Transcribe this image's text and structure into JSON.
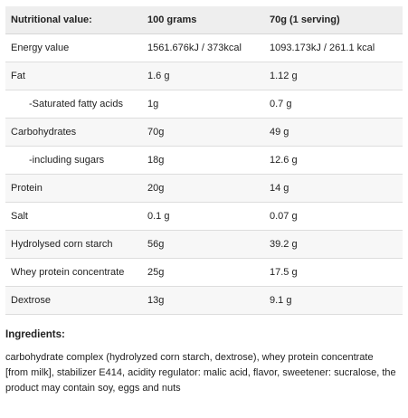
{
  "table": {
    "headers": [
      "Nutritional value:",
      "100 grams",
      "70g (1 serving)"
    ],
    "rows": [
      {
        "name": "Energy value",
        "per100": "1561.676kJ / 373kcal",
        "serving": "1093.173kJ / 261.1 kcal"
      },
      {
        "name": "Fat",
        "per100": "1.6 g",
        "serving": "1.12 g"
      },
      {
        "name": "-Saturated fatty acids",
        "per100": "1g",
        "serving": "0.7 g"
      },
      {
        "name": "Carbohydrates",
        "per100": "70g",
        "serving": "49 g"
      },
      {
        "name": "-including sugars",
        "per100": "18g",
        "serving": "12.6 g"
      },
      {
        "name": "Protein",
        "per100": "20g",
        "serving": "14 g"
      },
      {
        "name": "Salt",
        "per100": "0.1 g",
        "serving": "0.07 g"
      },
      {
        "name": "Hydrolysed corn starch",
        "per100": "56g",
        "serving": "39.2 g"
      },
      {
        "name": "Whey protein concentrate",
        "per100": "25g",
        "serving": "17.5 g"
      },
      {
        "name": "Dextrose",
        "per100": "13g",
        "serving": "9.1 g"
      }
    ]
  },
  "ingredients": {
    "title": "Ingredients:",
    "text": "carbohydrate complex (hydrolyzed corn starch, dextrose), whey protein concentrate [from milk], stabilizer E414, acidity regulator: malic acid, flavor, sweetener: sucralose, the product may contain soy, eggs and nuts"
  }
}
